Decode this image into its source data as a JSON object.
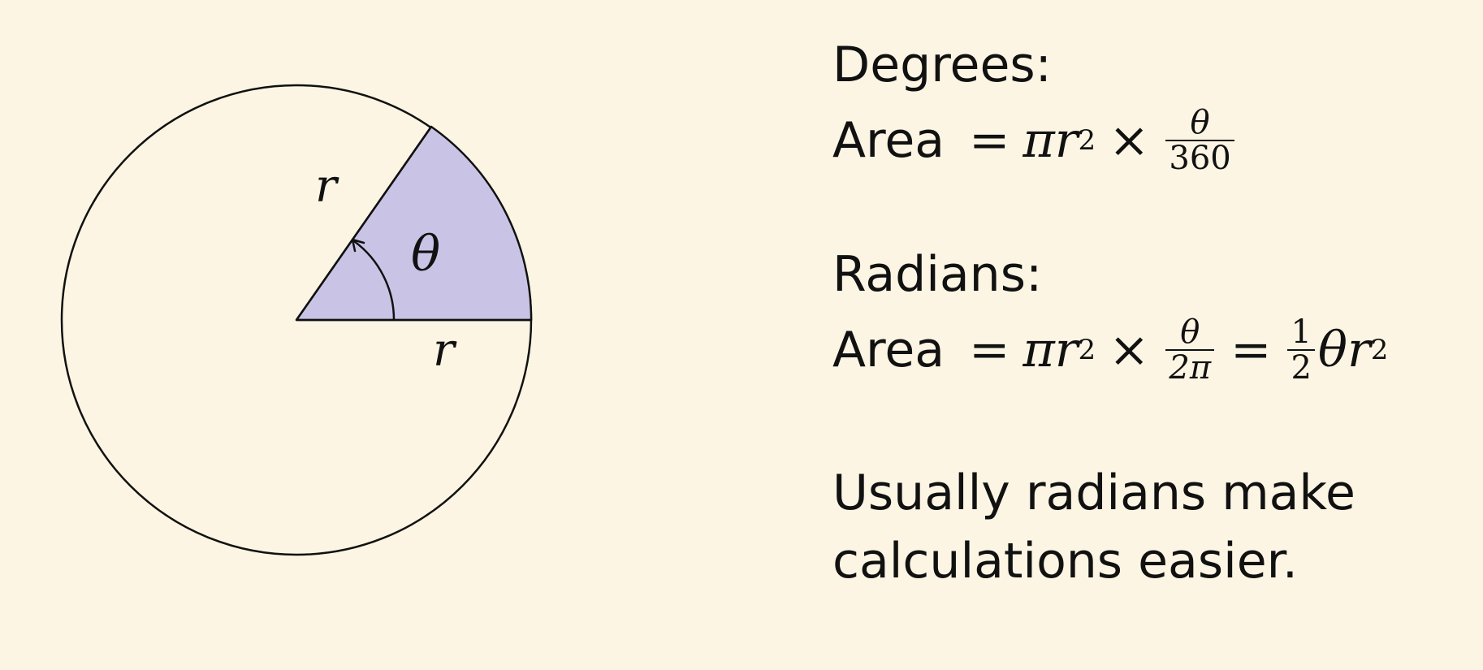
{
  "diagram": {
    "radius_label_upper": "r",
    "radius_label_lower": "r",
    "angle_label": "θ",
    "sector_color": "#c9c4e6",
    "stroke_color": "#111111",
    "background_color": "#fcf5e3"
  },
  "degrees": {
    "heading": "Degrees:",
    "lhs": "Area",
    "eq": "=",
    "pi": "π",
    "r": "r",
    "exp": "2",
    "times": "×",
    "frac_num": "θ",
    "frac_den": "360"
  },
  "radians": {
    "heading": "Radians:",
    "lhs": "Area",
    "eq": "=",
    "pi": "π",
    "r": "r",
    "exp": "2",
    "times": "×",
    "frac_num": "θ",
    "frac_den": "2π",
    "eq2": "=",
    "half_num": "1",
    "half_den": "2",
    "theta": "θ",
    "r2": "r",
    "exp2": "2"
  },
  "note": {
    "text": "Usually radians make\ncalculations easier."
  }
}
